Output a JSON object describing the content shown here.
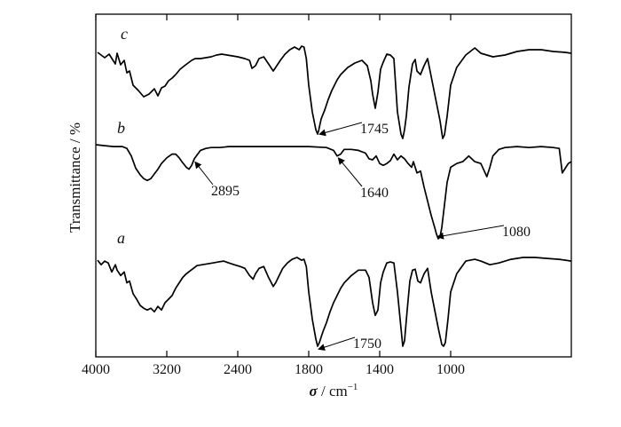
{
  "chart_data": {
    "type": "line",
    "xlabel_symbol": "σ",
    "xlabel_unit": " / cm",
    "xlabel_exponent": "−1",
    "ylabel": "Transmittance / %",
    "xlim": [
      4000,
      600
    ],
    "x_reversed": true,
    "xticks": [
      4000,
      3200,
      2400,
      1800,
      1400,
      1000
    ],
    "xtick_labels": [
      "4000",
      "3200",
      "2400",
      "1800",
      "1400",
      "1000"
    ],
    "grid": false,
    "series": [
      {
        "name": "c",
        "points": [
          [
            3980,
            0.03
          ],
          [
            3900,
            0.09
          ],
          [
            3850,
            0.05
          ],
          [
            3780,
            0.16
          ],
          [
            3760,
            0.04
          ],
          [
            3720,
            0.17
          ],
          [
            3680,
            0.12
          ],
          [
            3650,
            0.26
          ],
          [
            3620,
            0.24
          ],
          [
            3580,
            0.4
          ],
          [
            3520,
            0.46
          ],
          [
            3460,
            0.53
          ],
          [
            3400,
            0.5
          ],
          [
            3340,
            0.44
          ],
          [
            3300,
            0.52
          ],
          [
            3260,
            0.43
          ],
          [
            3220,
            0.41
          ],
          [
            3180,
            0.35
          ],
          [
            3140,
            0.32
          ],
          [
            3100,
            0.28
          ],
          [
            3050,
            0.22
          ],
          [
            3000,
            0.18
          ],
          [
            2960,
            0.15
          ],
          [
            2920,
            0.12
          ],
          [
            2880,
            0.1
          ],
          [
            2820,
            0.1
          ],
          [
            2760,
            0.09
          ],
          [
            2700,
            0.08
          ],
          [
            2640,
            0.06
          ],
          [
            2580,
            0.05
          ],
          [
            2520,
            0.06
          ],
          [
            2460,
            0.07
          ],
          [
            2400,
            0.08
          ],
          [
            2340,
            0.1
          ],
          [
            2300,
            0.12
          ],
          [
            2280,
            0.21
          ],
          [
            2250,
            0.18
          ],
          [
            2220,
            0.1
          ],
          [
            2180,
            0.08
          ],
          [
            2140,
            0.16
          ],
          [
            2100,
            0.24
          ],
          [
            2080,
            0.2
          ],
          [
            2040,
            0.12
          ],
          [
            2000,
            0.05
          ],
          [
            1960,
            0.0
          ],
          [
            1920,
            -0.03
          ],
          [
            1880,
            0.0
          ],
          [
            1860,
            -0.04
          ],
          [
            1840,
            -0.03
          ],
          [
            1820,
            0.1
          ],
          [
            1800,
            0.4
          ],
          [
            1780,
            0.7
          ],
          [
            1760,
            0.9
          ],
          [
            1750,
            0.95
          ],
          [
            1745,
            0.92
          ],
          [
            1730,
            0.78
          ],
          [
            1710,
            0.68
          ],
          [
            1690,
            0.56
          ],
          [
            1670,
            0.46
          ],
          [
            1640,
            0.34
          ],
          [
            1620,
            0.28
          ],
          [
            1580,
            0.2
          ],
          [
            1540,
            0.15
          ],
          [
            1500,
            0.12
          ],
          [
            1470,
            0.18
          ],
          [
            1450,
            0.35
          ],
          [
            1440,
            0.5
          ],
          [
            1425,
            0.66
          ],
          [
            1410,
            0.48
          ],
          [
            1395,
            0.22
          ],
          [
            1380,
            0.14
          ],
          [
            1360,
            0.05
          ],
          [
            1340,
            0.06
          ],
          [
            1320,
            0.1
          ],
          [
            1300,
            0.7
          ],
          [
            1280,
            0.95
          ],
          [
            1270,
            1.0
          ],
          [
            1260,
            0.9
          ],
          [
            1250,
            0.75
          ],
          [
            1235,
            0.42
          ],
          [
            1215,
            0.16
          ],
          [
            1200,
            0.11
          ],
          [
            1190,
            0.24
          ],
          [
            1170,
            0.28
          ],
          [
            1150,
            0.18
          ],
          [
            1130,
            0.1
          ],
          [
            1100,
            0.4
          ],
          [
            1080,
            0.6
          ],
          [
            1060,
            0.8
          ],
          [
            1045,
            1.0
          ],
          [
            1035,
            0.96
          ],
          [
            1020,
            0.75
          ],
          [
            1000,
            0.4
          ],
          [
            980,
            0.2
          ],
          [
            950,
            0.06
          ],
          [
            920,
            -0.02
          ],
          [
            900,
            0.04
          ],
          [
            860,
            0.08
          ],
          [
            820,
            0.06
          ],
          [
            780,
            0.02
          ],
          [
            740,
            0.0
          ],
          [
            700,
            0.0
          ],
          [
            660,
            0.02
          ],
          [
            620,
            0.03
          ],
          [
            600,
            0.04
          ]
        ]
      },
      {
        "name": "b",
        "points": [
          [
            4000,
            0.0
          ],
          [
            3900,
            0.01
          ],
          [
            3800,
            0.02
          ],
          [
            3700,
            0.02
          ],
          [
            3650,
            0.04
          ],
          [
            3600,
            0.12
          ],
          [
            3550,
            0.25
          ],
          [
            3500,
            0.32
          ],
          [
            3460,
            0.36
          ],
          [
            3420,
            0.38
          ],
          [
            3380,
            0.36
          ],
          [
            3340,
            0.31
          ],
          [
            3300,
            0.26
          ],
          [
            3260,
            0.2
          ],
          [
            3200,
            0.14
          ],
          [
            3140,
            0.1
          ],
          [
            3100,
            0.1
          ],
          [
            3060,
            0.14
          ],
          [
            3030,
            0.18
          ],
          [
            2980,
            0.24
          ],
          [
            2950,
            0.26
          ],
          [
            2920,
            0.22
          ],
          [
            2890,
            0.15
          ],
          [
            2860,
            0.11
          ],
          [
            2820,
            0.06
          ],
          [
            2760,
            0.04
          ],
          [
            2700,
            0.03
          ],
          [
            2600,
            0.03
          ],
          [
            2500,
            0.02
          ],
          [
            2400,
            0.02
          ],
          [
            2200,
            0.02
          ],
          [
            2000,
            0.02
          ],
          [
            1800,
            0.02
          ],
          [
            1700,
            0.03
          ],
          [
            1660,
            0.06
          ],
          [
            1640,
            0.12
          ],
          [
            1620,
            0.1
          ],
          [
            1600,
            0.05
          ],
          [
            1560,
            0.05
          ],
          [
            1520,
            0.06
          ],
          [
            1480,
            0.09
          ],
          [
            1460,
            0.15
          ],
          [
            1440,
            0.16
          ],
          [
            1420,
            0.12
          ],
          [
            1400,
            0.2
          ],
          [
            1380,
            0.22
          ],
          [
            1360,
            0.2
          ],
          [
            1340,
            0.17
          ],
          [
            1320,
            0.1
          ],
          [
            1300,
            0.16
          ],
          [
            1280,
            0.12
          ],
          [
            1260,
            0.15
          ],
          [
            1240,
            0.2
          ],
          [
            1220,
            0.24
          ],
          [
            1210,
            0.18
          ],
          [
            1190,
            0.3
          ],
          [
            1170,
            0.28
          ],
          [
            1150,
            0.45
          ],
          [
            1130,
            0.6
          ],
          [
            1110,
            0.75
          ],
          [
            1090,
            0.88
          ],
          [
            1080,
            0.95
          ],
          [
            1070,
            1.0
          ],
          [
            1060,
            0.98
          ],
          [
            1050,
            0.88
          ],
          [
            1040,
            0.72
          ],
          [
            1020,
            0.4
          ],
          [
            1000,
            0.24
          ],
          [
            980,
            0.2
          ],
          [
            960,
            0.18
          ],
          [
            940,
            0.12
          ],
          [
            920,
            0.18
          ],
          [
            900,
            0.2
          ],
          [
            880,
            0.34
          ],
          [
            870,
            0.24
          ],
          [
            860,
            0.12
          ],
          [
            840,
            0.05
          ],
          [
            820,
            0.03
          ],
          [
            780,
            0.02
          ],
          [
            740,
            0.03
          ],
          [
            700,
            0.02
          ],
          [
            660,
            0.03
          ],
          [
            640,
            0.04
          ],
          [
            630,
            0.3
          ],
          [
            620,
            0.25
          ],
          [
            610,
            0.2
          ],
          [
            600,
            0.18
          ]
        ]
      },
      {
        "name": "a",
        "points": [
          [
            3980,
            0.05
          ],
          [
            3940,
            0.1
          ],
          [
            3900,
            0.06
          ],
          [
            3860,
            0.08
          ],
          [
            3820,
            0.18
          ],
          [
            3780,
            0.1
          ],
          [
            3760,
            0.16
          ],
          [
            3720,
            0.22
          ],
          [
            3680,
            0.18
          ],
          [
            3650,
            0.3
          ],
          [
            3620,
            0.28
          ],
          [
            3580,
            0.42
          ],
          [
            3540,
            0.48
          ],
          [
            3500,
            0.55
          ],
          [
            3460,
            0.58
          ],
          [
            3420,
            0.6
          ],
          [
            3380,
            0.58
          ],
          [
            3340,
            0.62
          ],
          [
            3300,
            0.56
          ],
          [
            3260,
            0.6
          ],
          [
            3220,
            0.52
          ],
          [
            3180,
            0.48
          ],
          [
            3140,
            0.44
          ],
          [
            3100,
            0.36
          ],
          [
            3060,
            0.3
          ],
          [
            3020,
            0.24
          ],
          [
            2980,
            0.2
          ],
          [
            2940,
            0.17
          ],
          [
            2900,
            0.14
          ],
          [
            2860,
            0.11
          ],
          [
            2800,
            0.1
          ],
          [
            2740,
            0.09
          ],
          [
            2680,
            0.08
          ],
          [
            2620,
            0.07
          ],
          [
            2560,
            0.06
          ],
          [
            2500,
            0.08
          ],
          [
            2440,
            0.1
          ],
          [
            2380,
            0.12
          ],
          [
            2340,
            0.14
          ],
          [
            2300,
            0.22
          ],
          [
            2270,
            0.26
          ],
          [
            2250,
            0.2
          ],
          [
            2220,
            0.14
          ],
          [
            2180,
            0.12
          ],
          [
            2140,
            0.24
          ],
          [
            2100,
            0.34
          ],
          [
            2080,
            0.3
          ],
          [
            2050,
            0.22
          ],
          [
            2020,
            0.14
          ],
          [
            1980,
            0.08
          ],
          [
            1940,
            0.04
          ],
          [
            1900,
            0.02
          ],
          [
            1860,
            0.05
          ],
          [
            1840,
            0.04
          ],
          [
            1820,
            0.12
          ],
          [
            1800,
            0.4
          ],
          [
            1780,
            0.7
          ],
          [
            1760,
            0.92
          ],
          [
            1750,
            1.0
          ],
          [
            1740,
            0.96
          ],
          [
            1720,
            0.84
          ],
          [
            1700,
            0.74
          ],
          [
            1680,
            0.62
          ],
          [
            1660,
            0.52
          ],
          [
            1640,
            0.44
          ],
          [
            1620,
            0.36
          ],
          [
            1600,
            0.3
          ],
          [
            1560,
            0.22
          ],
          [
            1520,
            0.16
          ],
          [
            1480,
            0.16
          ],
          [
            1460,
            0.24
          ],
          [
            1440,
            0.52
          ],
          [
            1425,
            0.66
          ],
          [
            1410,
            0.6
          ],
          [
            1395,
            0.3
          ],
          [
            1380,
            0.18
          ],
          [
            1360,
            0.08
          ],
          [
            1340,
            0.07
          ],
          [
            1320,
            0.08
          ],
          [
            1300,
            0.4
          ],
          [
            1280,
            0.8
          ],
          [
            1270,
            1.0
          ],
          [
            1260,
            0.94
          ],
          [
            1245,
            0.6
          ],
          [
            1230,
            0.28
          ],
          [
            1215,
            0.16
          ],
          [
            1200,
            0.15
          ],
          [
            1185,
            0.28
          ],
          [
            1170,
            0.3
          ],
          [
            1150,
            0.2
          ],
          [
            1130,
            0.14
          ],
          [
            1110,
            0.4
          ],
          [
            1090,
            0.6
          ],
          [
            1070,
            0.8
          ],
          [
            1050,
            0.98
          ],
          [
            1040,
            1.0
          ],
          [
            1030,
            0.96
          ],
          [
            1015,
            0.7
          ],
          [
            1000,
            0.4
          ],
          [
            980,
            0.2
          ],
          [
            950,
            0.06
          ],
          [
            920,
            0.04
          ],
          [
            900,
            0.06
          ],
          [
            870,
            0.1
          ],
          [
            840,
            0.08
          ],
          [
            800,
            0.04
          ],
          [
            760,
            0.02
          ],
          [
            720,
            0.02
          ],
          [
            680,
            0.03
          ],
          [
            640,
            0.04
          ],
          [
            600,
            0.06
          ]
        ]
      }
    ],
    "annotations": [
      {
        "label": "1745",
        "series": "c",
        "x": 1745
      },
      {
        "label": "2895",
        "series": "b",
        "x": 2895
      },
      {
        "label": "1640",
        "series": "b",
        "x": 1640
      },
      {
        "label": "1080",
        "series": "b",
        "x": 1080
      },
      {
        "label": "1750",
        "series": "a",
        "x": 1750
      }
    ]
  }
}
